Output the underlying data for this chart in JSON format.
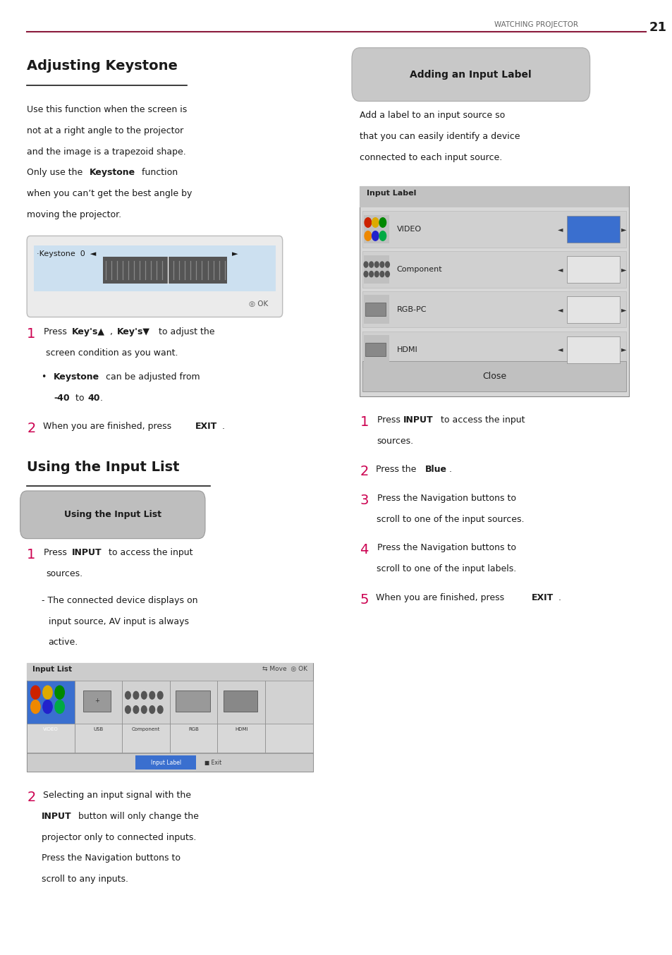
{
  "page_num": "21",
  "header_text": "WATCHING PROJECTOR",
  "header_line_color": "#8B1A3C",
  "bg_color": "#ffffff",
  "section1_title": "Adjusting Keystone",
  "section2_title": "Using the Input List",
  "section2_badge": "Using the Input List",
  "right_badge": "Adding an Input Label",
  "pink_color": "#CC0050",
  "text_color": "#1a1a1a",
  "up_arrow": "▲",
  "down_arrow": "▼",
  "left_arrow": "◄",
  "right_arrow": "►",
  "bullet": "•",
  "circle_ok": "◎",
  "move_icon": "⇆",
  "square": "■",
  "close_quote": "’"
}
